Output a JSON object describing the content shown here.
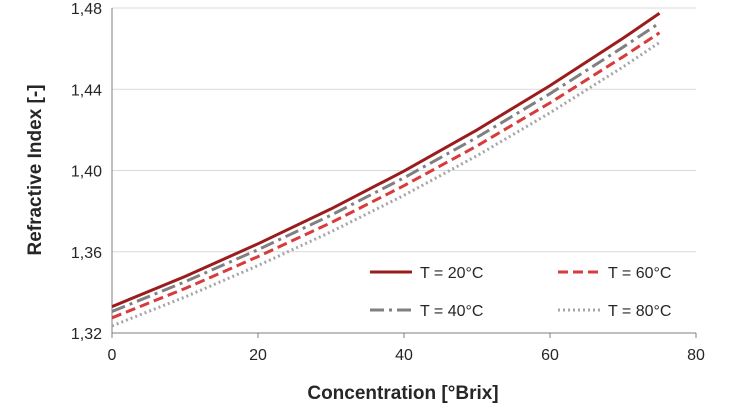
{
  "chart_data": {
    "type": "line",
    "xlabel": "Concentration [°Brix]",
    "ylabel": "Refractive Index [-]",
    "xlim": [
      0,
      80
    ],
    "ylim": [
      1.32,
      1.48
    ],
    "x_ticks": [
      "0",
      "20",
      "40",
      "60",
      "80"
    ],
    "y_ticks": [
      "1,32",
      "1,36",
      "1,40",
      "1,44",
      "1,48"
    ],
    "grid": "horizontal",
    "legend_position": "bottom-right",
    "x": [
      0,
      10,
      20,
      30,
      40,
      50,
      60,
      70,
      75
    ],
    "series": [
      {
        "name": "T = 20°C",
        "values": [
          1.333,
          1.3478,
          1.3639,
          1.3811,
          1.3997,
          1.42,
          1.4418,
          1.4651,
          1.4774
        ],
        "color": "#9b1c1c",
        "style": "solid"
      },
      {
        "name": "T = 40°C",
        "values": [
          1.3306,
          1.3452,
          1.361,
          1.378,
          1.3964,
          1.4163,
          1.4378,
          1.4607,
          1.4726
        ],
        "color": "#808080",
        "style": "dashdot"
      },
      {
        "name": "T = 60°C",
        "values": [
          1.3275,
          1.3419,
          1.3576,
          1.3743,
          1.3925,
          1.4121,
          1.4333,
          1.456,
          1.4678
        ],
        "color": "#d93a3a",
        "style": "dashed"
      },
      {
        "name": "T = 80°C",
        "values": [
          1.3235,
          1.3377,
          1.3532,
          1.3698,
          1.3878,
          1.4073,
          1.4284,
          1.451,
          1.463
        ],
        "color": "#a6a6a6",
        "style": "dotted"
      }
    ]
  }
}
